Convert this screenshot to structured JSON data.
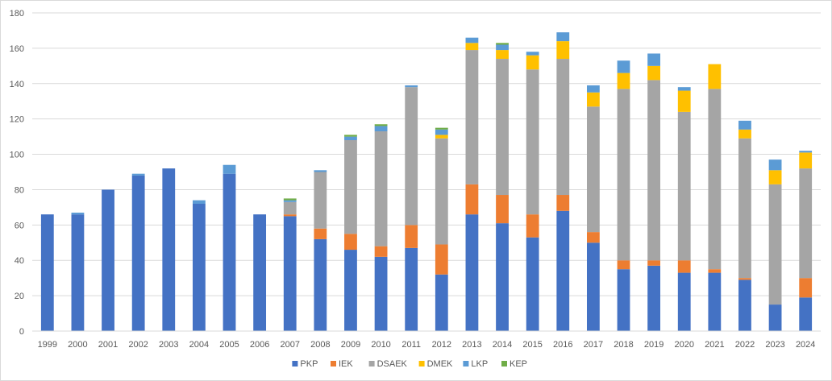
{
  "chart_data": {
    "type": "bar",
    "stacked": true,
    "title": "",
    "xlabel": "",
    "ylabel": "",
    "ylim": [
      0,
      180
    ],
    "yticks": [
      0,
      20,
      40,
      60,
      80,
      100,
      120,
      140,
      160,
      180
    ],
    "grid": true,
    "legend_position": "bottom",
    "categories": [
      "1999",
      "2000",
      "2001",
      "2002",
      "2003",
      "2004",
      "2005",
      "2006",
      "2007",
      "2008",
      "2009",
      "2010",
      "2011",
      "2012",
      "2013",
      "2014",
      "2015",
      "2016",
      "2017",
      "2018",
      "2019",
      "2020",
      "2021",
      "2022",
      "2023",
      "2024"
    ],
    "series": [
      {
        "name": "PKP",
        "color": "#4472C4",
        "values": [
          66,
          66,
          80,
          88,
          92,
          72,
          89,
          66,
          65,
          52,
          46,
          42,
          47,
          32,
          66,
          61,
          53,
          68,
          50,
          35,
          37,
          33,
          33,
          29,
          15,
          19
        ]
      },
      {
        "name": "IEK",
        "color": "#ED7D31",
        "values": [
          0,
          0,
          0,
          0,
          0,
          0,
          0,
          0,
          1,
          6,
          9,
          6,
          13,
          17,
          17,
          16,
          13,
          9,
          6,
          5,
          3,
          7,
          2,
          1,
          0,
          11
        ]
      },
      {
        "name": "DSAEK",
        "color": "#A5A5A5",
        "values": [
          0,
          0,
          0,
          0,
          0,
          0,
          0,
          0,
          7,
          32,
          53,
          65,
          78,
          60,
          76,
          77,
          82,
          77,
          71,
          97,
          102,
          84,
          102,
          79,
          68,
          62
        ]
      },
      {
        "name": "DMEK",
        "color": "#FFC000",
        "values": [
          0,
          0,
          0,
          0,
          0,
          0,
          0,
          0,
          0,
          0,
          0,
          0,
          0,
          2,
          4,
          5,
          8,
          10,
          8,
          9,
          8,
          12,
          14,
          5,
          8,
          9
        ]
      },
      {
        "name": "LKP",
        "color": "#5B9BD5",
        "values": [
          0,
          1,
          0,
          1,
          0,
          2,
          5,
          0,
          1,
          1,
          2,
          3,
          1,
          3,
          3,
          3,
          2,
          5,
          4,
          7,
          7,
          2,
          0,
          5,
          6,
          1
        ]
      },
      {
        "name": "KEP",
        "color": "#70AD47",
        "values": [
          0,
          0,
          0,
          0,
          0,
          0,
          0,
          0,
          1,
          0,
          1,
          1,
          0,
          1,
          0,
          1,
          0,
          0,
          0,
          0,
          0,
          0,
          0,
          0,
          0,
          0
        ]
      }
    ]
  }
}
